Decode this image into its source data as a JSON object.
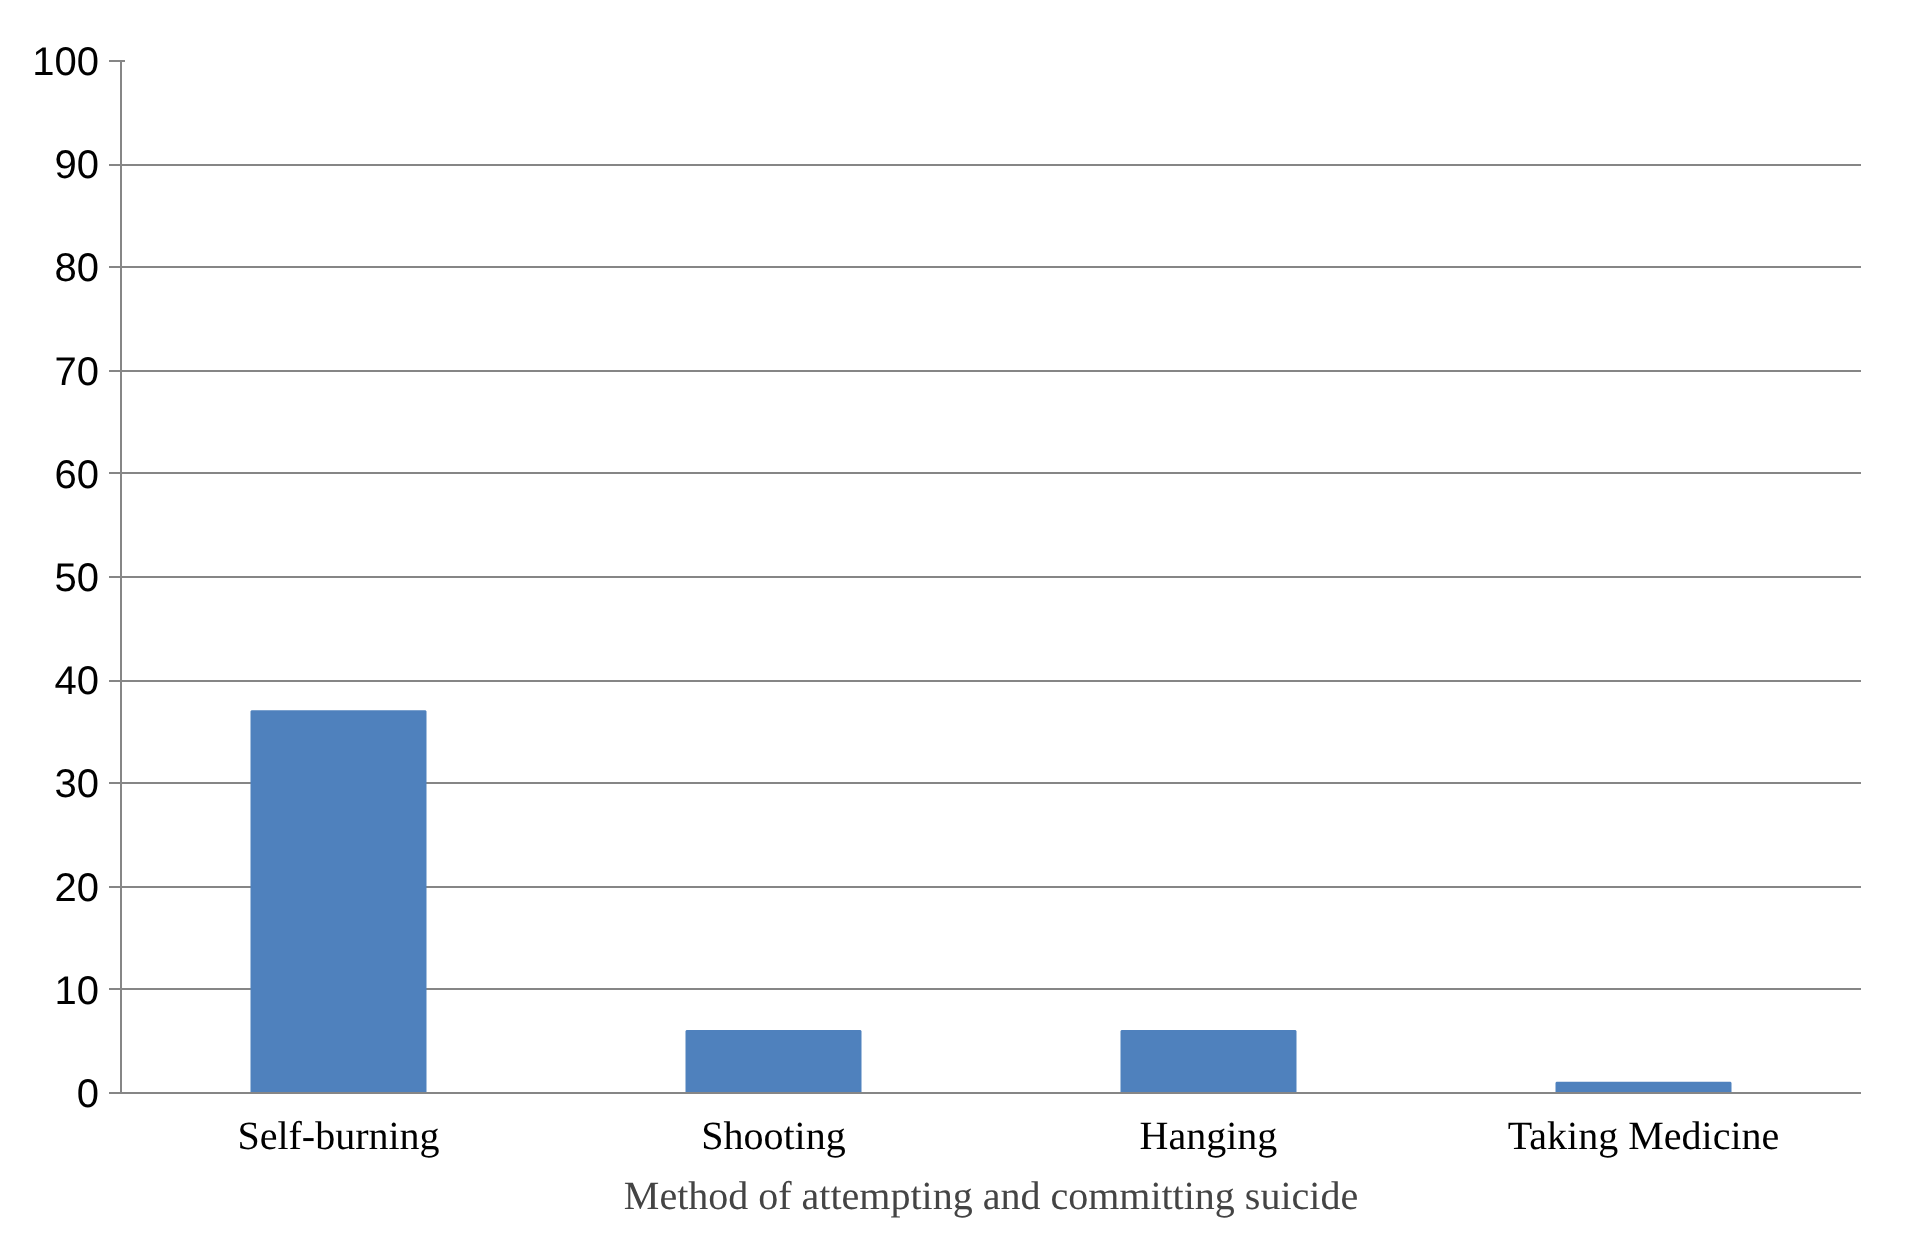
{
  "chart_data": {
    "type": "bar",
    "xlabel": "Method of attempting and committing suicide",
    "categories": [
      "Self-burning",
      "Shooting",
      "Hanging",
      "Taking Medicine"
    ],
    "values": [
      37,
      6,
      6,
      1
    ],
    "color": "#4f81bd",
    "ylim": [
      0,
      100
    ],
    "yticks": [
      0,
      10,
      20,
      30,
      40,
      50,
      60,
      70,
      80,
      90,
      100
    ],
    "grid": "y"
  }
}
